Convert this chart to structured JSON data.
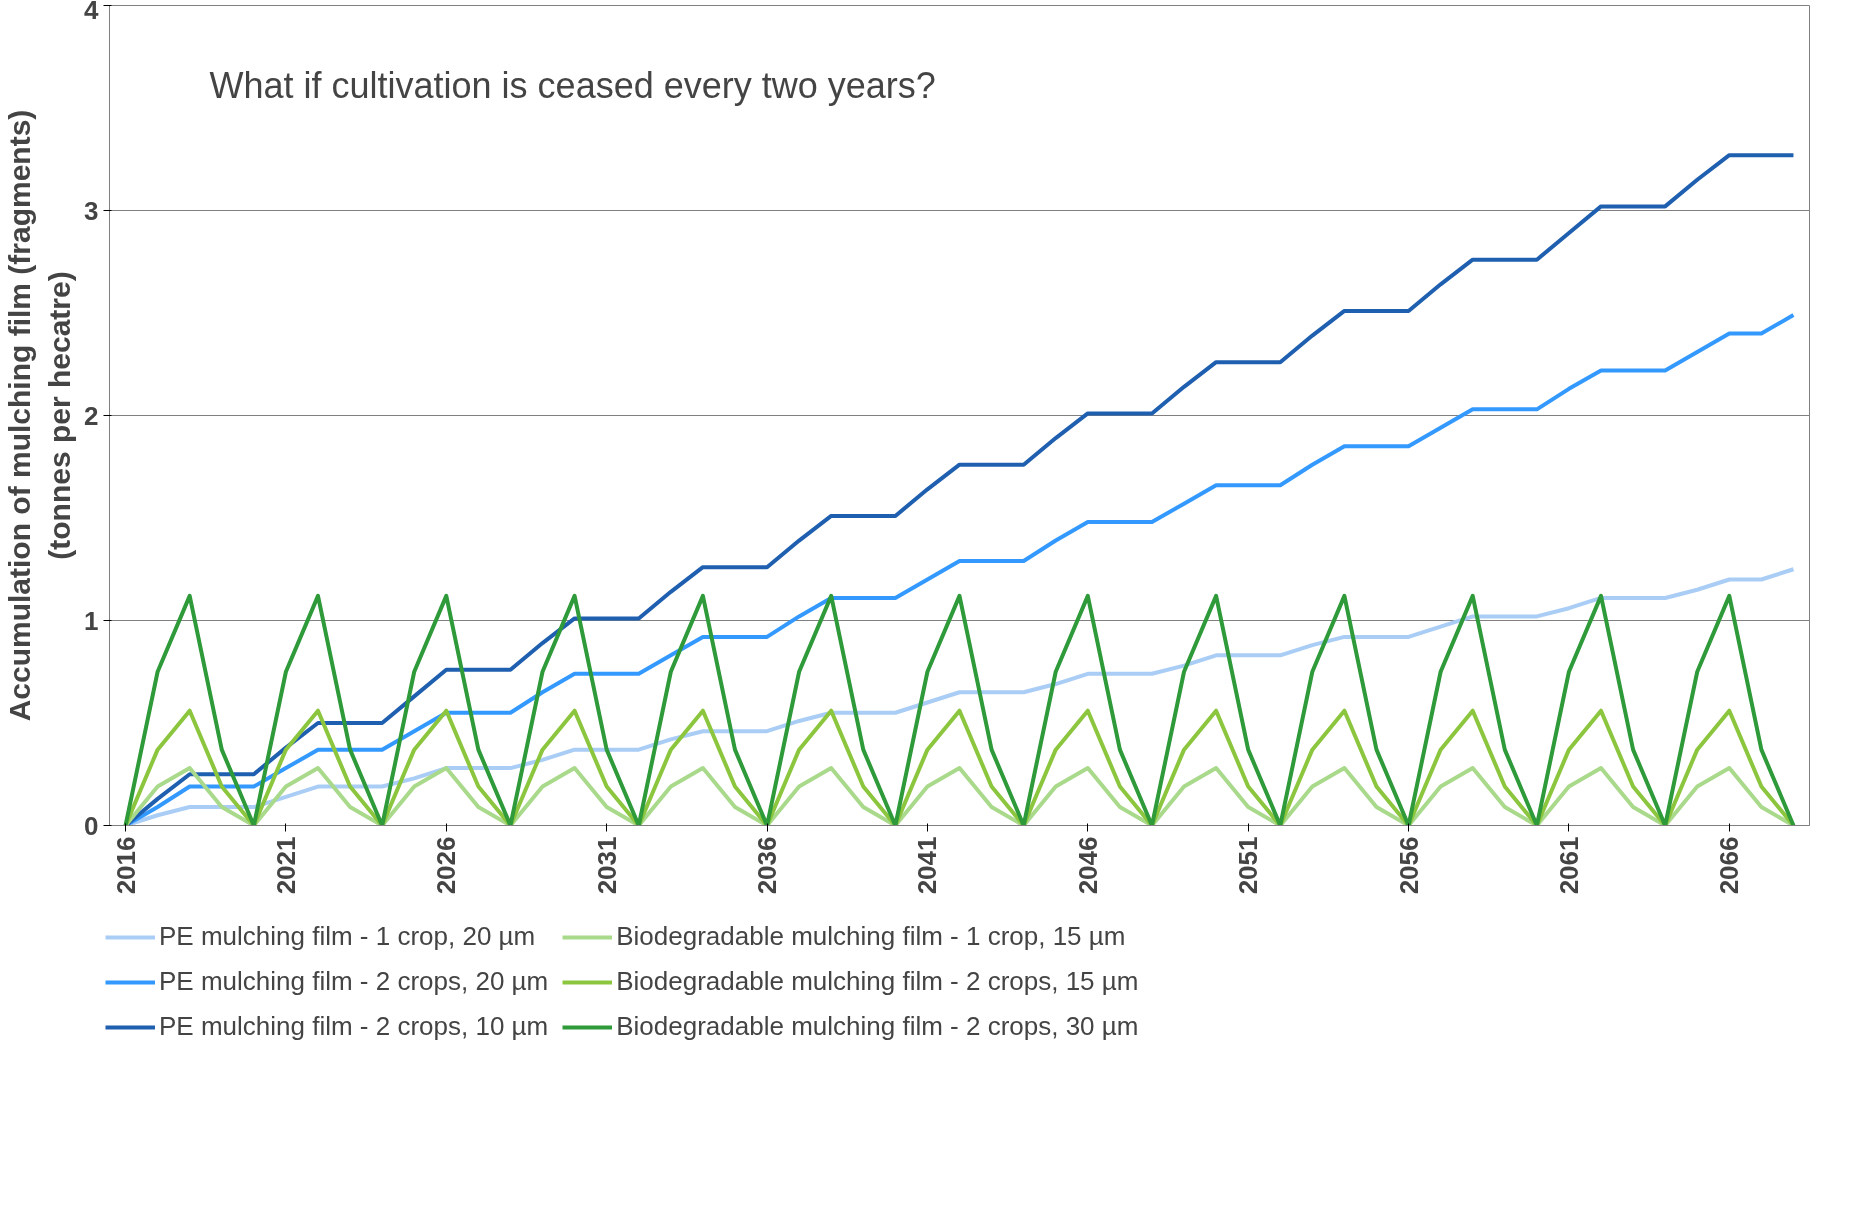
{
  "chart_data": {
    "type": "line",
    "ylabel": "Accumulation of mulching film (fragments)\n(tonnes per hecatre)",
    "annotations": [
      "What if cultivation is ceased every two years?"
    ],
    "x": [
      2016,
      2017,
      2018,
      2019,
      2020,
      2021,
      2022,
      2023,
      2024,
      2025,
      2026,
      2027,
      2028,
      2029,
      2030,
      2031,
      2032,
      2033,
      2034,
      2035,
      2036,
      2037,
      2038,
      2039,
      2040,
      2041,
      2042,
      2043,
      2044,
      2045,
      2046,
      2047,
      2048,
      2049,
      2050,
      2051,
      2052,
      2053,
      2054,
      2055,
      2056,
      2057,
      2058,
      2059,
      2060,
      2061,
      2062,
      2063,
      2064,
      2065,
      2066,
      2067,
      2068
    ],
    "xlim": [
      2015.5,
      2068.5
    ],
    "xticks": [
      2016,
      2021,
      2026,
      2031,
      2036,
      2041,
      2046,
      2051,
      2056,
      2061,
      2066
    ],
    "ylim": [
      0,
      4
    ],
    "yticks": [
      0,
      1,
      2,
      3,
      4
    ],
    "grid": "y",
    "legend": "bottom",
    "marker": "none",
    "line_style": "solid",
    "series": [
      {
        "name": "PE mulching film - 1 crop, 20 µm",
        "color": "#a9cdf5",
        "values": [
          0,
          0.05,
          0.09,
          0.09,
          0.09,
          0.14,
          0.19,
          0.19,
          0.19,
          0.23,
          0.28,
          0.28,
          0.28,
          0.32,
          0.37,
          0.37,
          0.37,
          0.42,
          0.46,
          0.46,
          0.46,
          0.51,
          0.55,
          0.55,
          0.55,
          0.6,
          0.65,
          0.65,
          0.65,
          0.69,
          0.74,
          0.74,
          0.74,
          0.78,
          0.83,
          0.83,
          0.83,
          0.88,
          0.92,
          0.92,
          0.92,
          0.97,
          1.02,
          1.02,
          1.02,
          1.06,
          1.11,
          1.11,
          1.11,
          1.15,
          1.2,
          1.2,
          1.25
        ]
      },
      {
        "name": "PE mulching film - 2 crops, 20 µm",
        "color": "#3399ff",
        "values": [
          0,
          0.09,
          0.19,
          0.19,
          0.19,
          0.28,
          0.37,
          0.37,
          0.37,
          0.46,
          0.55,
          0.55,
          0.55,
          0.65,
          0.74,
          0.74,
          0.74,
          0.83,
          0.92,
          0.92,
          0.92,
          1.02,
          1.11,
          1.11,
          1.11,
          1.2,
          1.29,
          1.29,
          1.29,
          1.39,
          1.48,
          1.48,
          1.48,
          1.57,
          1.66,
          1.66,
          1.66,
          1.76,
          1.85,
          1.85,
          1.85,
          1.94,
          2.03,
          2.03,
          2.03,
          2.13,
          2.22,
          2.22,
          2.22,
          2.31,
          2.4,
          2.4,
          2.49
        ]
      },
      {
        "name": "PE mulching film - 2 crops, 10 µm",
        "color": "#1f5fb0",
        "values": [
          0,
          0.13,
          0.25,
          0.25,
          0.25,
          0.38,
          0.5,
          0.5,
          0.5,
          0.63,
          0.76,
          0.76,
          0.76,
          0.89,
          1.01,
          1.01,
          1.01,
          1.14,
          1.26,
          1.26,
          1.26,
          1.39,
          1.51,
          1.51,
          1.51,
          1.64,
          1.76,
          1.76,
          1.76,
          1.89,
          2.01,
          2.01,
          2.01,
          2.14,
          2.26,
          2.26,
          2.26,
          2.39,
          2.51,
          2.51,
          2.51,
          2.64,
          2.76,
          2.76,
          2.76,
          2.89,
          3.02,
          3.02,
          3.02,
          3.15,
          3.27,
          3.27,
          3.27
        ]
      },
      {
        "name": "Biodegradable mulching film - 1 crop, 15 µm",
        "color": "#a9d98a",
        "values": [
          0,
          0.19,
          0.28,
          0.09,
          0,
          0.19,
          0.28,
          0.09,
          0,
          0.19,
          0.28,
          0.09,
          0,
          0.19,
          0.28,
          0.09,
          0,
          0.19,
          0.28,
          0.09,
          0,
          0.19,
          0.28,
          0.09,
          0,
          0.19,
          0.28,
          0.09,
          0,
          0.19,
          0.28,
          0.09,
          0,
          0.19,
          0.28,
          0.09,
          0,
          0.19,
          0.28,
          0.09,
          0,
          0.19,
          0.28,
          0.09,
          0,
          0.19,
          0.28,
          0.09,
          0,
          0.19,
          0.28,
          0.09,
          0
        ]
      },
      {
        "name": "Biodegradable mulching film - 2 crops, 15 µm",
        "color": "#8cc63f",
        "values": [
          0,
          0.37,
          0.56,
          0.19,
          0,
          0.37,
          0.56,
          0.19,
          0,
          0.37,
          0.56,
          0.19,
          0,
          0.37,
          0.56,
          0.19,
          0,
          0.37,
          0.56,
          0.19,
          0,
          0.37,
          0.56,
          0.19,
          0,
          0.37,
          0.56,
          0.19,
          0,
          0.37,
          0.56,
          0.19,
          0,
          0.37,
          0.56,
          0.19,
          0,
          0.37,
          0.56,
          0.19,
          0,
          0.37,
          0.56,
          0.19,
          0,
          0.37,
          0.56,
          0.19,
          0,
          0.37,
          0.56,
          0.19,
          0
        ]
      },
      {
        "name": "Biodegradable mulching film - 2 crops, 30 µm",
        "color": "#2e9a3a",
        "values": [
          0,
          0.75,
          1.12,
          0.37,
          0,
          0.75,
          1.12,
          0.37,
          0,
          0.75,
          1.12,
          0.37,
          0,
          0.75,
          1.12,
          0.37,
          0,
          0.75,
          1.12,
          0.37,
          0,
          0.75,
          1.12,
          0.37,
          0,
          0.75,
          1.12,
          0.37,
          0,
          0.75,
          1.12,
          0.37,
          0,
          0.75,
          1.12,
          0.37,
          0,
          0.75,
          1.12,
          0.37,
          0,
          0.75,
          1.12,
          0.37,
          0,
          0.75,
          1.12,
          0.37,
          0,
          0.75,
          1.12,
          0.37,
          0
        ]
      }
    ]
  }
}
